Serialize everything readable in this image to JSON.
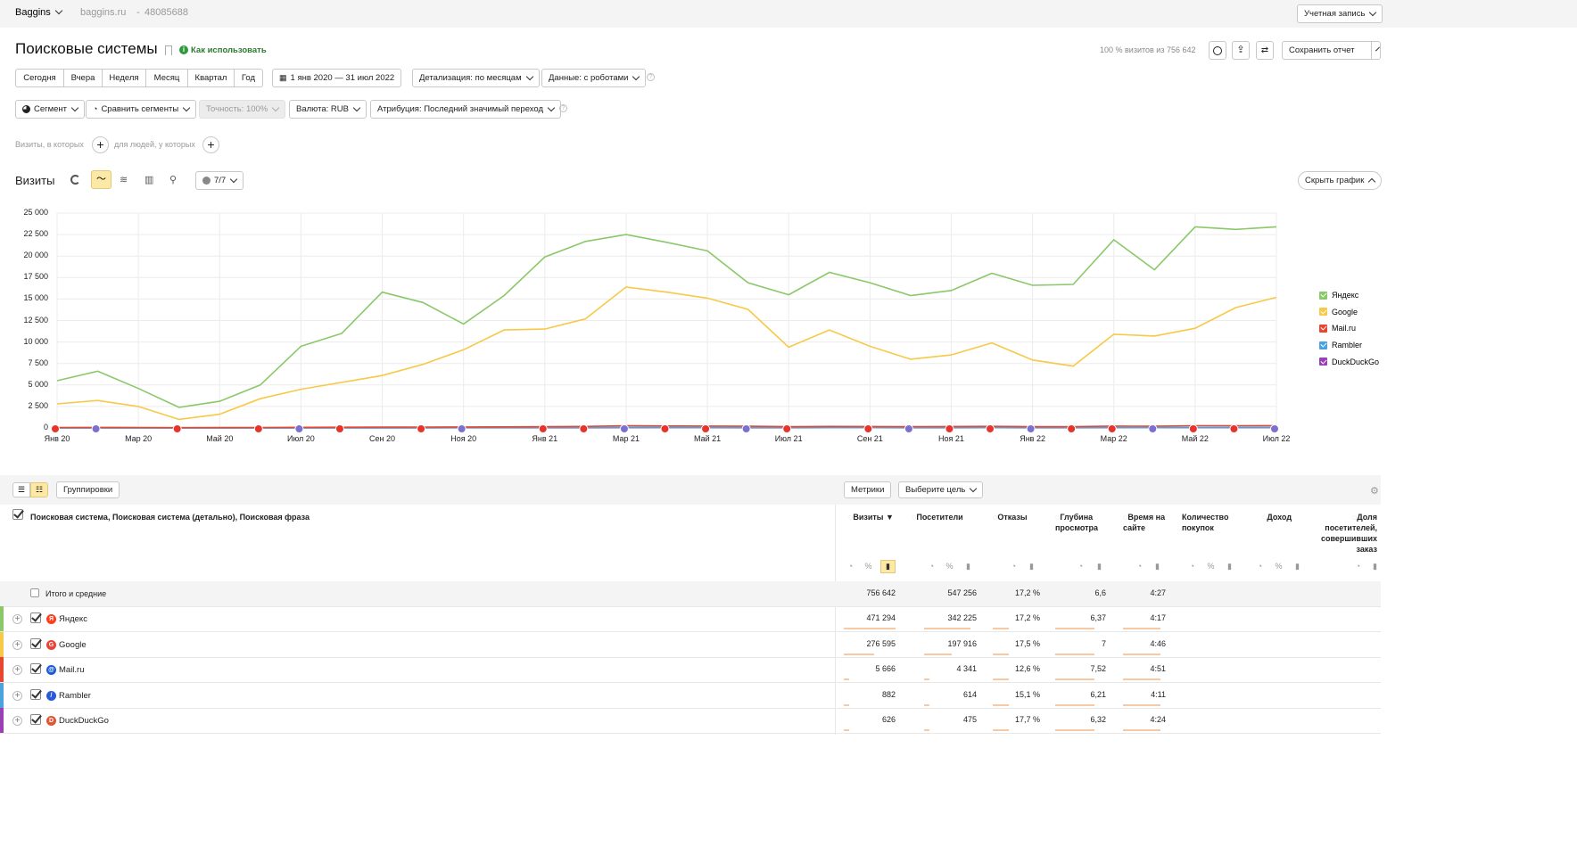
{
  "topbar": {
    "counter_name": "Baggins",
    "site": "baggins.ru",
    "counter_id": "48085688",
    "account": "Учетная запись"
  },
  "header": {
    "title": "Поисковые системы",
    "howto": "Как использовать",
    "visits_share": "100 % визитов из 756 642",
    "save_report": "Сохранить отчет"
  },
  "periods": [
    "Сегодня",
    "Вчера",
    "Неделя",
    "Месяц",
    "Квартал",
    "Год"
  ],
  "date_range": "1 янв 2020 — 31 июл 2022",
  "detail": "Детализация: по месяцам",
  "data_mode": "Данные: с роботами",
  "segment": "Сегмент",
  "compare": "Сравнить сегменты",
  "accuracy": "Точность: 100%",
  "currency": "Валюта: RUB",
  "attribution": "Атрибуция: Последний значимый переход",
  "filters": {
    "visits_where": "Визиты, в которых",
    "people_where": "для людей, у которых"
  },
  "chart_header": {
    "title": "Визиты",
    "series_count": "7/7",
    "hide_chart": "Скрыть график"
  },
  "chart_data": {
    "type": "line",
    "x": [
      "Янв 20",
      "Фев 20",
      "Мар 20",
      "Апр 20",
      "Май 20",
      "Июн 20",
      "Июл 20",
      "Авг 20",
      "Сен 20",
      "Окт 20",
      "Ноя 20",
      "Дек 20",
      "Янв 21",
      "Фев 21",
      "Мар 21",
      "Апр 21",
      "Май 21",
      "Июн 21",
      "Июл 21",
      "Авг 21",
      "Сен 21",
      "Окт 21",
      "Ноя 21",
      "Дек 21",
      "Янв 22",
      "Фев 22",
      "Мар 22",
      "Апр 22",
      "Май 22",
      "Июн 22",
      "Июл 22"
    ],
    "xtick_labels": [
      "Янв 20",
      "Мар 20",
      "Май 20",
      "Июл 20",
      "Сен 20",
      "Ноя 20",
      "Янв 21",
      "Мар 21",
      "Май 21",
      "Июл 21",
      "Сен 21",
      "Ноя 21",
      "Янв 22",
      "Мар 22",
      "Май 22",
      "Июл 22"
    ],
    "yticks": [
      "0",
      "2 500",
      "5 000",
      "7 500",
      "10 000",
      "12 500",
      "15 000",
      "17 500",
      "20 000",
      "22 500",
      "25 000"
    ],
    "ylim": [
      0,
      25000
    ],
    "series": [
      {
        "name": "Яндекс",
        "color": "#8ac86a",
        "values": [
          5500,
          6600,
          4600,
          2400,
          3100,
          5000,
          9500,
          11000,
          15800,
          14600,
          12100,
          15400,
          19900,
          21700,
          22500,
          21600,
          20600,
          16900,
          15500,
          18100,
          16900,
          15400,
          16000,
          18000,
          16600,
          16700,
          21900,
          18400,
          23400,
          23100,
          23400
        ]
      },
      {
        "name": "Google",
        "color": "#f7c948",
        "values": [
          2800,
          3200,
          2500,
          1000,
          1600,
          3400,
          4500,
          5300,
          6100,
          7400,
          9100,
          11400,
          11500,
          12700,
          16400,
          15800,
          15100,
          13800,
          9400,
          11400,
          9500,
          8000,
          8500,
          9900,
          7900,
          7200,
          10900,
          10700,
          11600,
          14000,
          15200
        ]
      },
      {
        "name": "Mail.ru",
        "color": "#e8462e",
        "values": [
          50,
          60,
          50,
          30,
          40,
          50,
          70,
          80,
          90,
          100,
          110,
          120,
          150,
          180,
          250,
          230,
          220,
          200,
          150,
          180,
          170,
          160,
          170,
          190,
          150,
          160,
          220,
          200,
          260,
          250,
          270
        ]
      },
      {
        "name": "Rambler",
        "color": "#4aa3df",
        "values": [
          10,
          10,
          10,
          5,
          5,
          10,
          15,
          20,
          25,
          30,
          30,
          35,
          40,
          45,
          50,
          45,
          45,
          40,
          30,
          35,
          35,
          30,
          30,
          35,
          30,
          30,
          40,
          35,
          45,
          45,
          50
        ]
      },
      {
        "name": "DuckDuckGo",
        "color": "#9b3fb5",
        "values": [
          5,
          5,
          5,
          5,
          5,
          5,
          10,
          10,
          15,
          15,
          20,
          20,
          25,
          25,
          30,
          30,
          30,
          25,
          25,
          30,
          30,
          25,
          25,
          30,
          25,
          25,
          30,
          30,
          35,
          35,
          40
        ]
      }
    ],
    "legend": "right"
  },
  "table": {
    "groupings_label": "Группировки",
    "metrics_label": "Метрики",
    "goal_label": "Выберите цель",
    "dimension_header": "Поисковая система, Поисковая система (детально), Поисковая фраза",
    "columns": [
      "Визиты",
      "Посетители",
      "Отказы",
      "Глубина просмотра",
      "Время на сайте",
      "Количество покупок",
      "Доход",
      "Доля посетителей, совершивших заказ"
    ],
    "total": {
      "label": "Итого и средние",
      "visits": "756 642",
      "visitors": "547 256",
      "bounce": "17,2 %",
      "depth": "6,6",
      "time": "4:27"
    },
    "rows": [
      {
        "label": "Яндекс",
        "color": "#8ac86a",
        "icon": "yandex-icon",
        "visits": "471 294",
        "visitors": "342 225",
        "bounce": "17,2 %",
        "depth": "6,37",
        "time": "4:17",
        "visits_share": 0.62
      },
      {
        "label": "Google",
        "color": "#f7c948",
        "icon": "google-icon",
        "visits": "276 595",
        "visitors": "197 916",
        "bounce": "17,5 %",
        "depth": "7",
        "time": "4:46",
        "visits_share": 0.37
      },
      {
        "label": "Mail.ru",
        "color": "#e8462e",
        "icon": "mailru-icon",
        "visits": "5 666",
        "visitors": "4 341",
        "bounce": "12,6 %",
        "depth": "7,52",
        "time": "4:51",
        "visits_share": 0.01
      },
      {
        "label": "Rambler",
        "color": "#4aa3df",
        "icon": "rambler-icon",
        "visits": "882",
        "visitors": "614",
        "bounce": "15,1 %",
        "depth": "6,21",
        "time": "4:11",
        "visits_share": 0.001
      },
      {
        "label": "DuckDuckGo",
        "color": "#9b3fb5",
        "icon": "duckduckgo-icon",
        "visits": "626",
        "visitors": "475",
        "bounce": "17,7 %",
        "depth": "6,32",
        "time": "4:24",
        "visits_share": 0.001
      }
    ]
  }
}
